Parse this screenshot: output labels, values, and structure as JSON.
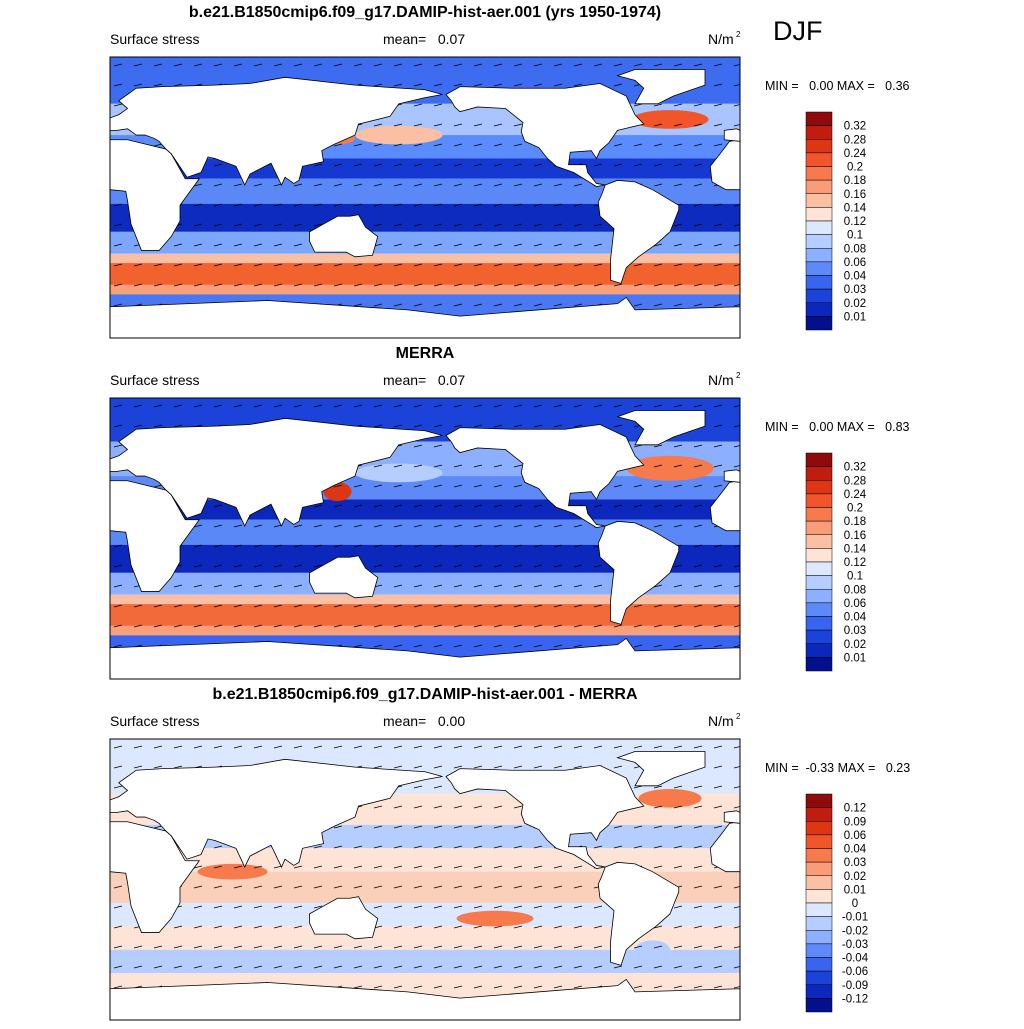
{
  "season": "DJF",
  "panels": [
    {
      "title": "b.e21.B1850cmip6.f09_g17.DAMIP-hist-aer.001 (yrs 1950-1974)",
      "left": "Surface stress",
      "mean": "mean=   0.07",
      "units": {
        "base": "N/m",
        "sup": "2"
      },
      "minmax": "MIN =   0.00 MAX =   0.36",
      "colorbar_labels": [
        "0.32",
        "0.28",
        "0.24",
        "0.2",
        "0.18",
        "0.16",
        "0.14",
        "0.12",
        "0.1",
        "0.08",
        "0.06",
        "0.04",
        "0.03",
        "0.02",
        "0.01"
      ]
    },
    {
      "title": "MERRA",
      "left": "Surface stress",
      "mean": "mean=   0.07",
      "units": {
        "base": "N/m",
        "sup": "2"
      },
      "minmax": "MIN =   0.00 MAX =   0.83",
      "colorbar_labels": [
        "0.32",
        "0.28",
        "0.24",
        "0.2",
        "0.18",
        "0.16",
        "0.14",
        "0.12",
        "0.1",
        "0.08",
        "0.06",
        "0.04",
        "0.03",
        "0.02",
        "0.01"
      ]
    },
    {
      "title": "b.e21.B1850cmip6.f09_g17.DAMIP-hist-aer.001 - MERRA",
      "left": "Surface stress",
      "mean": "mean=   0.00",
      "units": {
        "base": "N/m",
        "sup": "2"
      },
      "minmax": "MIN =  -0.33 MAX =   0.23",
      "colorbar_labels": [
        "0.12",
        "0.09",
        "0.06",
        "0.04",
        "0.03",
        "0.02",
        "0.01",
        "0",
        "-0.01",
        "-0.02",
        "-0.03",
        "-0.04",
        "-0.06",
        "-0.09",
        "-0.12"
      ]
    }
  ],
  "colorbar_colors": [
    "#8f0a0a",
    "#c01d0f",
    "#dc3612",
    "#f2552a",
    "#f67a4c",
    "#f99c78",
    "#fbc0a4",
    "#fde4d6",
    "#dbe8ff",
    "#b5cdff",
    "#8cafff",
    "#5e89f8",
    "#3964ef",
    "#1b43da",
    "#0b27bc",
    "#03108c"
  ]
}
